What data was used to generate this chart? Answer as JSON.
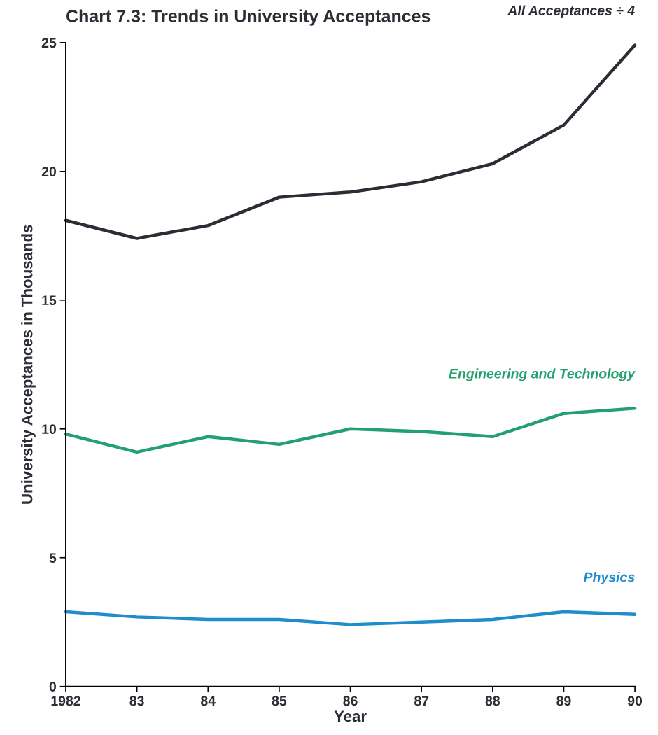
{
  "chart_data": {
    "type": "line",
    "title": "Chart 7.3: Trends in University Acceptances",
    "xlabel": "Year",
    "ylabel": "University Acceptances in Thousands",
    "x": [
      1982,
      1983,
      1984,
      1985,
      1986,
      1987,
      1988,
      1989,
      1990
    ],
    "xlim": [
      1982,
      1990
    ],
    "xticks": [
      {
        "value": 1982,
        "label": "1982"
      },
      {
        "value": 1983,
        "label": "83"
      },
      {
        "value": 1984,
        "label": "84"
      },
      {
        "value": 1985,
        "label": "85"
      },
      {
        "value": 1986,
        "label": "86"
      },
      {
        "value": 1987,
        "label": "87"
      },
      {
        "value": 1988,
        "label": "88"
      },
      {
        "value": 1989,
        "label": "89"
      },
      {
        "value": 1990,
        "label": "90"
      }
    ],
    "ylim": [
      0,
      25
    ],
    "yticks": [
      0,
      5,
      10,
      15,
      20,
      25
    ],
    "grid": false,
    "legend": false,
    "marker": "none",
    "line_style": "solid",
    "series": [
      {
        "name": "All Acceptances ÷ 4",
        "color": "#2b2d35",
        "values": [
          18.1,
          17.4,
          17.9,
          19.0,
          19.2,
          19.6,
          20.3,
          21.8,
          24.9
        ]
      },
      {
        "name": "Engineering and Technology",
        "color": "#22a06f",
        "values": [
          9.8,
          9.1,
          9.7,
          9.4,
          10.0,
          9.9,
          9.7,
          10.6,
          10.8
        ]
      },
      {
        "name": "Physics",
        "color": "#1f8ccb",
        "values": [
          2.9,
          2.7,
          2.6,
          2.6,
          2.4,
          2.5,
          2.6,
          2.9,
          2.8
        ]
      }
    ]
  }
}
